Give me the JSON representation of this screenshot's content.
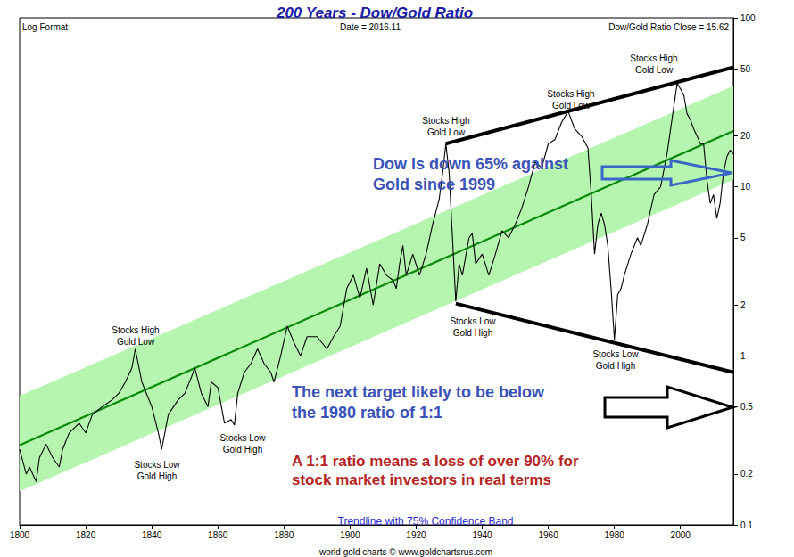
{
  "chart_data": {
    "type": "line",
    "title": "200 Years - Dow/Gold Ratio",
    "log": "y",
    "grid": false,
    "xlim": [
      1800,
      2016
    ],
    "xticks": [
      1800,
      1820,
      1840,
      1860,
      1880,
      1900,
      1920,
      1940,
      1960,
      1980,
      2000
    ],
    "ylim": [
      0.1,
      100
    ],
    "yticks": [
      0.1,
      0.2,
      0.5,
      1,
      2,
      5,
      10,
      20,
      50,
      100
    ],
    "series": [
      {
        "type": "band",
        "color": "#b6f5b0",
        "x": [
          1800,
          2016
        ],
        "lower": [
          0.158,
          11
        ],
        "upper": [
          0.58,
          39.5
        ]
      },
      {
        "type": "line",
        "color": "#0a8a0a",
        "line_style": "medium",
        "x": [
          1800,
          2016
        ],
        "values": [
          0.296,
          21.4
        ]
      },
      {
        "type": "line",
        "color": "#000000",
        "line_style": "thin",
        "x": [
          1800,
          1802,
          1803,
          1805,
          1806,
          1808,
          1810,
          1812,
          1813,
          1815,
          1818,
          1820,
          1822,
          1825,
          1828,
          1830,
          1832,
          1834,
          1835,
          1837,
          1840,
          1842,
          1843,
          1845,
          1848,
          1850,
          1852,
          1853,
          1855,
          1857,
          1858,
          1860,
          1862,
          1864,
          1865,
          1866,
          1868,
          1870,
          1872,
          1874,
          1876,
          1877,
          1879,
          1881,
          1883,
          1885,
          1887,
          1890,
          1893,
          1895,
          1897,
          1899,
          1901,
          1903,
          1905,
          1907,
          1909,
          1911,
          1913,
          1914,
          1915,
          1916,
          1917,
          1919,
          1921,
          1923,
          1925,
          1927,
          1928,
          1929,
          1930,
          1931,
          1932,
          1933,
          1934,
          1936,
          1937,
          1938,
          1940,
          1942,
          1944,
          1946,
          1948,
          1950,
          1952,
          1954,
          1956,
          1958,
          1960,
          1962,
          1964,
          1966,
          1968,
          1970,
          1972,
          1973,
          1974,
          1975,
          1976,
          1977,
          1978,
          1979,
          1980,
          1981,
          1982,
          1983,
          1985,
          1987,
          1988,
          1990,
          1992,
          1994,
          1996,
          1998,
          1999,
          2000,
          2001,
          2002,
          2003,
          2004,
          2005,
          2006,
          2007,
          2008,
          2009,
          2010,
          2011,
          2012,
          2013,
          2014,
          2015,
          2016
        ],
        "values": [
          0.28,
          0.2,
          0.22,
          0.18,
          0.25,
          0.3,
          0.25,
          0.22,
          0.28,
          0.35,
          0.4,
          0.35,
          0.45,
          0.5,
          0.55,
          0.6,
          0.7,
          0.85,
          1.1,
          0.7,
          0.5,
          0.35,
          0.28,
          0.45,
          0.55,
          0.6,
          0.75,
          0.85,
          0.6,
          0.5,
          0.7,
          0.65,
          0.4,
          0.42,
          0.39,
          0.6,
          0.8,
          0.9,
          1.1,
          0.9,
          0.8,
          0.7,
          1.0,
          1.5,
          1.2,
          1.0,
          1.3,
          1.3,
          1.1,
          1.3,
          1.5,
          2.5,
          3.0,
          2.2,
          3.3,
          2.0,
          3.5,
          3.0,
          2.8,
          2.5,
          3.5,
          4.5,
          3.0,
          4.0,
          3.0,
          4.0,
          6,
          8.5,
          12,
          18,
          12,
          5,
          2.1,
          3.5,
          3.0,
          5,
          5.3,
          3.5,
          4,
          3,
          4,
          5.5,
          5,
          6,
          7.5,
          10,
          14,
          13,
          18,
          19,
          24,
          28,
          22,
          20,
          17,
          9,
          4,
          6,
          7,
          6,
          4.5,
          2.5,
          1.25,
          2.3,
          2.5,
          3,
          4,
          5,
          4.5,
          6,
          9,
          10,
          16,
          30,
          41,
          38,
          35,
          27,
          25,
          22,
          20,
          18,
          18,
          11,
          8,
          9,
          6.5,
          8,
          12,
          15,
          16.5,
          15.62
        ]
      },
      {
        "type": "line",
        "color": "#000000",
        "line_style": "thick",
        "x": [
          1929,
          2016
        ],
        "values": [
          18,
          51
        ]
      },
      {
        "type": "line",
        "color": "#000000",
        "line_style": "thick",
        "x": [
          1932,
          2016
        ],
        "values": [
          2.04,
          0.8
        ]
      }
    ],
    "annotations": [
      {
        "text": "Log Format",
        "color": "#000000"
      },
      {
        "text": "Date = 2016.11",
        "color": "#000000"
      },
      {
        "text": "Dow/Gold Ratio Close = 15.62",
        "color": "#000000"
      },
      {
        "text": "Stocks High\nGold Low",
        "color": "#000000"
      },
      {
        "text": "Stocks Low\nGold High",
        "color": "#000000"
      },
      {
        "text": "Stocks Low\nGold High",
        "color": "#000000"
      },
      {
        "text": "Stocks High\nGold Low",
        "color": "#000000"
      },
      {
        "text": "Stocks Low\nGold High",
        "color": "#000000"
      },
      {
        "text": "Stocks High\nGold Low",
        "color": "#000000"
      },
      {
        "text": "Stocks Low\nGold High",
        "color": "#000000"
      },
      {
        "text": "Stocks High\nGold Low",
        "color": "#000000"
      },
      {
        "text": "Dow is down 65% against\nGold since 1999",
        "color": "#3a52b8"
      },
      {
        "text": "The next target likely to be below\nthe 1980 ratio of 1:1",
        "color": "#3a52b8"
      },
      {
        "text": "A 1:1 ratio means a loss of over 90% for\nstock market investors in real terms",
        "color": "#b5231f"
      },
      {
        "text": "Trendline with 75% Confidence Band",
        "color": "#2a2ad0"
      },
      {
        "text": "world gold charts © www.goldchartsrus.com",
        "color": "#000000"
      }
    ]
  }
}
